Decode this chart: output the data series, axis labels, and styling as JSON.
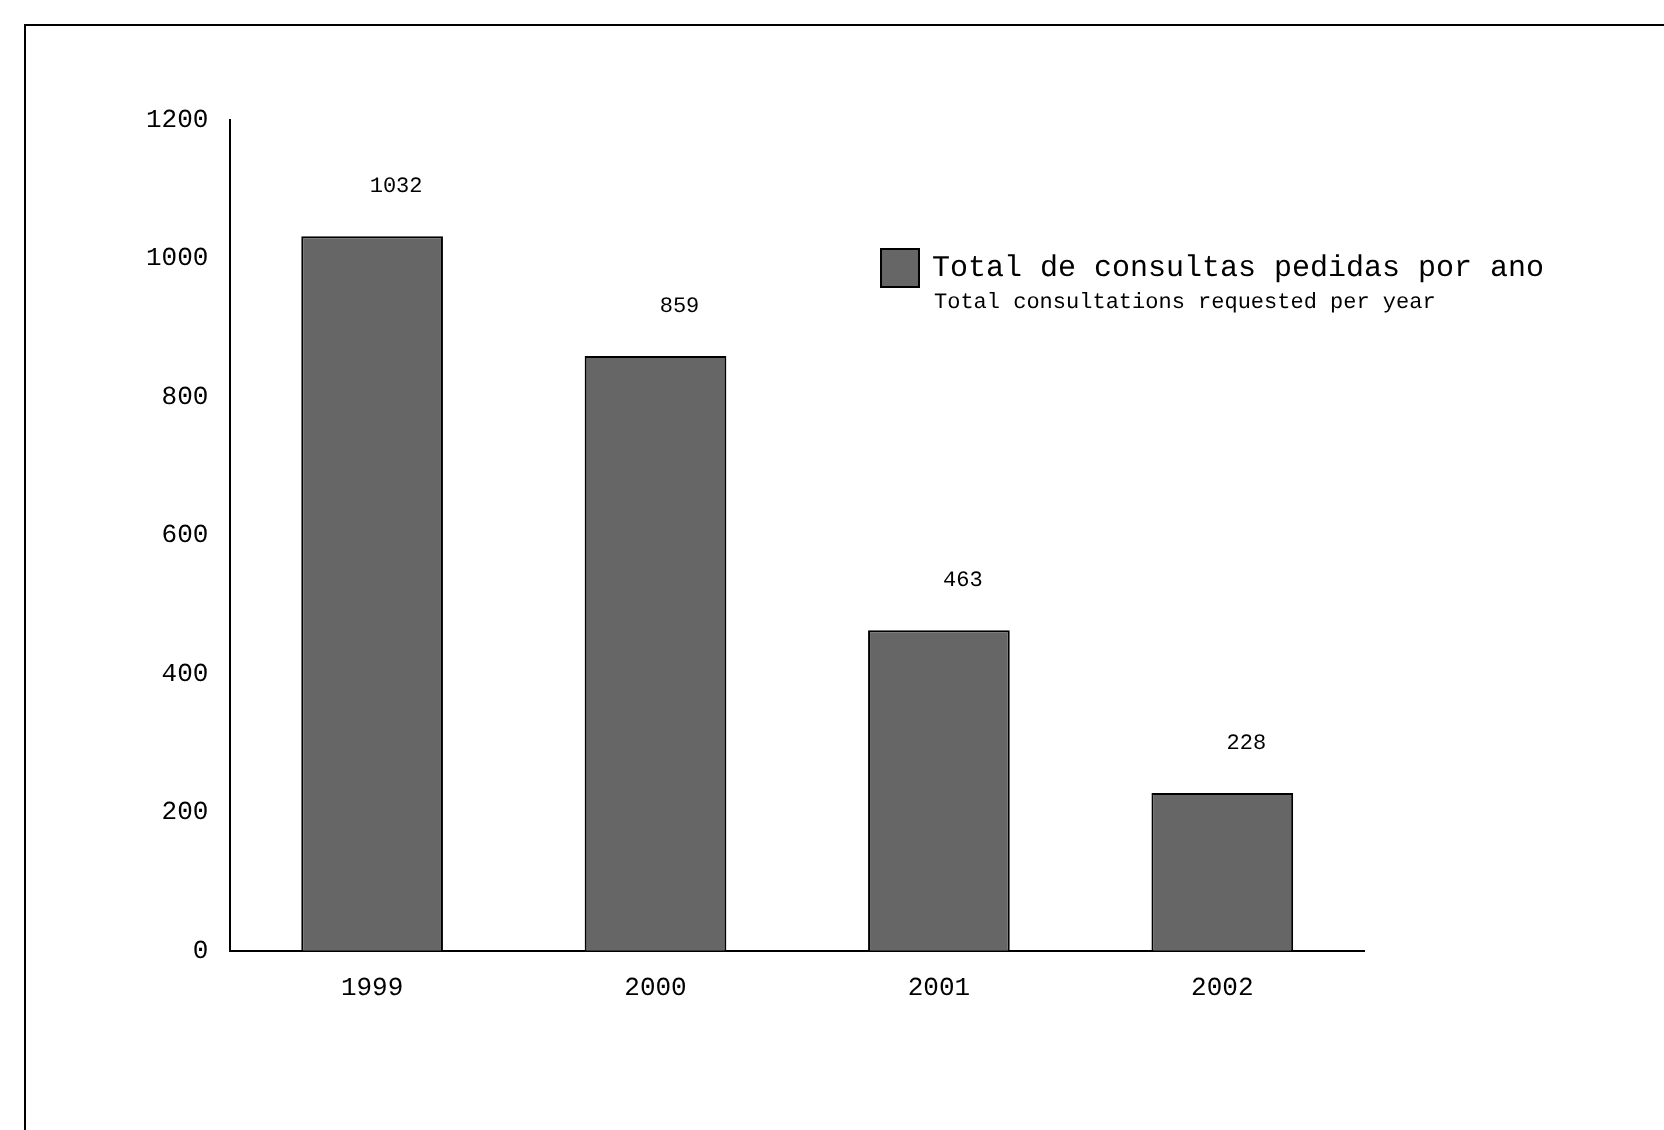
{
  "chart_data": {
    "type": "bar",
    "categories": [
      "1999",
      "2000",
      "2001",
      "2002"
    ],
    "series": [
      {
        "name": "Total de consultas pedidas por ano",
        "color": "#666666",
        "values": [
          1032,
          859,
          463,
          228
        ]
      }
    ],
    "ylim": [
      0,
      1200
    ],
    "yticks": [
      0,
      200,
      400,
      600,
      800,
      1000,
      1200
    ],
    "grid": false,
    "legend": "top right",
    "data_labels": true,
    "annotations": [
      "Total consultations requested per year"
    ]
  }
}
